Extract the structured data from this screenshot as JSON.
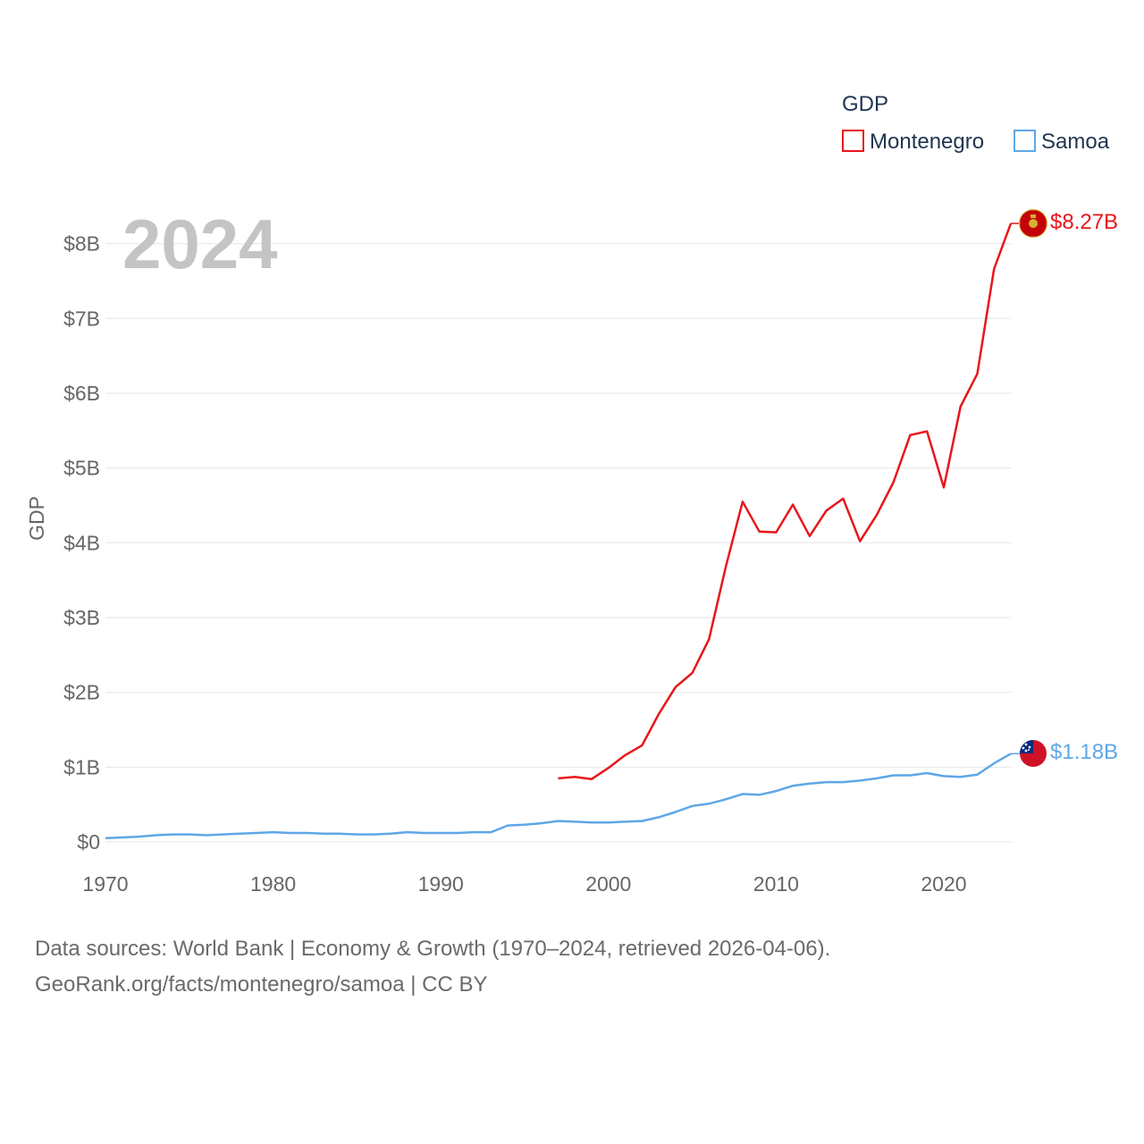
{
  "chart_data": {
    "type": "line",
    "title": "GDP",
    "watermark_year": "2024",
    "xlabel": "",
    "ylabel": "GDP",
    "xlim": [
      1970,
      2024
    ],
    "ylim": [
      0,
      8.27
    ],
    "x_ticks": [
      1970,
      1980,
      1990,
      2000,
      2010,
      2020
    ],
    "y_ticks": [
      {
        "value": 0,
        "label": "$0"
      },
      {
        "value": 1,
        "label": "$1B"
      },
      {
        "value": 2,
        "label": "$2B"
      },
      {
        "value": 3,
        "label": "$3B"
      },
      {
        "value": 4,
        "label": "$4B"
      },
      {
        "value": 5,
        "label": "$5B"
      },
      {
        "value": 6,
        "label": "$6B"
      },
      {
        "value": 7,
        "label": "$7B"
      },
      {
        "value": 8,
        "label": "$8B"
      }
    ],
    "legend": {
      "title": "GDP",
      "position": "top-right"
    },
    "series": [
      {
        "name": "Montenegro",
        "color": "#e8161b",
        "end_label": "$8.27B",
        "flag": "montenegro-flag-icon",
        "x": [
          1997,
          1998,
          1999,
          2000,
          2001,
          2002,
          2003,
          2004,
          2005,
          2006,
          2007,
          2008,
          2009,
          2010,
          2011,
          2012,
          2013,
          2014,
          2015,
          2016,
          2017,
          2018,
          2019,
          2020,
          2021,
          2022,
          2023,
          2024
        ],
        "values": [
          0.85,
          0.87,
          0.84,
          0.99,
          1.16,
          1.29,
          1.71,
          2.07,
          2.26,
          2.71,
          3.68,
          4.55,
          4.15,
          4.14,
          4.51,
          4.09,
          4.43,
          4.59,
          4.02,
          4.37,
          4.81,
          5.44,
          5.49,
          4.74,
          5.82,
          6.26,
          7.66,
          8.27
        ]
      },
      {
        "name": "Samoa",
        "color": "#5ea7e6",
        "end_label": "$1.18B",
        "flag": "samoa-flag-icon",
        "x": [
          1970,
          1971,
          1972,
          1973,
          1974,
          1975,
          1976,
          1977,
          1978,
          1979,
          1980,
          1981,
          1982,
          1983,
          1984,
          1985,
          1986,
          1987,
          1988,
          1989,
          1990,
          1991,
          1992,
          1993,
          1994,
          1995,
          1996,
          1997,
          1998,
          1999,
          2000,
          2001,
          2002,
          2003,
          2004,
          2005,
          2006,
          2007,
          2008,
          2009,
          2010,
          2011,
          2012,
          2013,
          2014,
          2015,
          2016,
          2017,
          2018,
          2019,
          2020,
          2021,
          2022,
          2023,
          2024
        ],
        "values": [
          0.05,
          0.06,
          0.07,
          0.09,
          0.1,
          0.1,
          0.09,
          0.1,
          0.11,
          0.12,
          0.13,
          0.12,
          0.12,
          0.11,
          0.11,
          0.1,
          0.1,
          0.11,
          0.13,
          0.12,
          0.12,
          0.12,
          0.13,
          0.13,
          0.22,
          0.23,
          0.25,
          0.28,
          0.27,
          0.26,
          0.26,
          0.27,
          0.28,
          0.33,
          0.4,
          0.48,
          0.51,
          0.57,
          0.64,
          0.63,
          0.68,
          0.75,
          0.78,
          0.8,
          0.8,
          0.82,
          0.85,
          0.89,
          0.89,
          0.92,
          0.88,
          0.87,
          0.9,
          1.05,
          1.18
        ]
      }
    ]
  },
  "footer": {
    "line1": "Data sources: World Bank | Economy & Growth (1970–2024, retrieved 2026-04-06).",
    "line2": "GeoRank.org/facts/montenegro/samoa | CC BY"
  }
}
